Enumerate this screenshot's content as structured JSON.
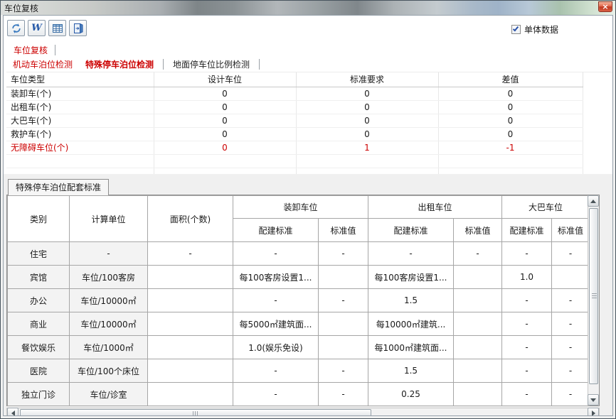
{
  "window": {
    "title": "车位复核",
    "close_glyph": "×"
  },
  "toolbar": {
    "icons": [
      {
        "id": "refresh",
        "name": "refresh-icon"
      },
      {
        "id": "word-export",
        "name": "word-icon",
        "glyph": "W"
      },
      {
        "id": "table-export",
        "name": "table-icon"
      },
      {
        "id": "exit",
        "name": "exit-door-icon"
      }
    ],
    "checkbox": {
      "label": "单体数据",
      "checked": true
    }
  },
  "tabs": {
    "main_tab": "车位复核",
    "sub_tabs": [
      {
        "id": "motor-berth-check",
        "label": "机动车泊位检测",
        "red": true,
        "selected": false,
        "separator_after": false
      },
      {
        "id": "special-berth-check",
        "label": "特殊停车泊位检测",
        "red": true,
        "selected": true,
        "separator_after": true
      },
      {
        "id": "ground-ratio-check",
        "label": "地面停车位比例检测",
        "red": false,
        "selected": false,
        "separator_after": true
      }
    ]
  },
  "top_table": {
    "columns": [
      "车位类型",
      "设计车位",
      "标准要求",
      "差值"
    ],
    "rows": [
      {
        "type": "装卸车(个)",
        "design": "0",
        "standard": "0",
        "diff": "0",
        "alert": false
      },
      {
        "type": "出租车(个)",
        "design": "0",
        "standard": "0",
        "diff": "0",
        "alert": false
      },
      {
        "type": "大巴车(个)",
        "design": "0",
        "standard": "0",
        "diff": "0",
        "alert": false
      },
      {
        "type": "救护车(个)",
        "design": "0",
        "standard": "0",
        "diff": "0",
        "alert": false
      },
      {
        "type": "无障碍车位(个)",
        "design": "0",
        "standard": "1",
        "diff": "-1",
        "alert": true
      }
    ]
  },
  "bottom_section": {
    "tab": "特殊停车泊位配套标准",
    "table": {
      "fixed_columns": [
        "类别",
        "计算单位",
        "面积(个数)"
      ],
      "groups": [
        {
          "label": "装卸车位",
          "sub": [
            "配建标准",
            "标准值"
          ]
        },
        {
          "label": "出租车位",
          "sub": [
            "配建标准",
            "标准值"
          ]
        },
        {
          "label": "大巴车位",
          "sub": [
            "配建标准",
            "标准值"
          ]
        }
      ],
      "rows": [
        {
          "category": "住宅",
          "unit": "-",
          "area": "-",
          "cells": [
            "-",
            "-",
            "-",
            "-",
            "-",
            "-"
          ]
        },
        {
          "category": "宾馆",
          "unit": "车位/100客房",
          "area": "",
          "cells": [
            "每100客房设置1...",
            "",
            "每100客房设置1...",
            "",
            "1.0",
            ""
          ]
        },
        {
          "category": "办公",
          "unit": "车位/10000㎡",
          "area": "",
          "cells": [
            "-",
            "-",
            "1.5",
            "",
            "-",
            "-"
          ]
        },
        {
          "category": "商业",
          "unit": "车位/10000㎡",
          "area": "",
          "cells": [
            "每5000㎡建筑面...",
            "",
            "每10000㎡建筑...",
            "",
            "-",
            "-"
          ]
        },
        {
          "category": "餐饮娱乐",
          "unit": "车位/1000㎡",
          "area": "",
          "cells": [
            "1.0(娱乐免设)",
            "",
            "每1000㎡建筑面...",
            "",
            "-",
            "-"
          ]
        },
        {
          "category": "医院",
          "unit": "车位/100个床位",
          "area": "",
          "cells": [
            "-",
            "-",
            "1.5",
            "",
            "-",
            "-"
          ]
        },
        {
          "category": "独立门诊",
          "unit": "车位/诊室",
          "area": "",
          "cells": [
            "-",
            "-",
            "0.25",
            "",
            "-",
            "-"
          ]
        }
      ]
    }
  },
  "colors": {
    "tab_red": "#cc0000",
    "alert_red": "#cc0000",
    "close_button_red": "#d6573b",
    "icon_blue": "#3a6ea5",
    "check_blue": "#2a52a8",
    "grid_border": "#a6a6a6"
  }
}
